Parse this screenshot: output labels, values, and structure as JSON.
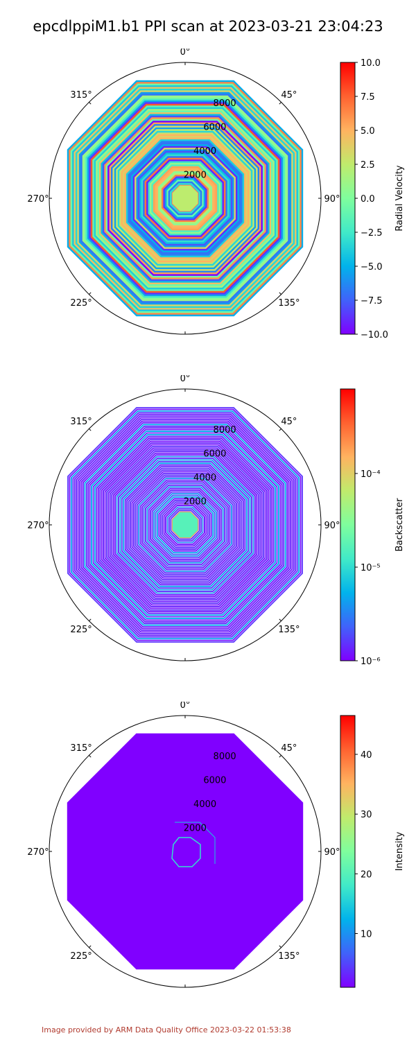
{
  "title": "epcdlppiM1.b1 PPI scan at 2023-03-21 23:04:23",
  "footer": "Image provided by ARM Data Quality Office 2023-03-22 01:53:38",
  "colors": {
    "title": "#000000",
    "footer": "#b03a2e",
    "colormap": [
      "#8000ff",
      "#4062fa",
      "#01b3eb",
      "#41eac8",
      "#7ffe9d",
      "#c0eb6c",
      "#ffb360",
      "#ff6230",
      "#ff0000"
    ]
  },
  "chart_data": [
    {
      "type": "heatmap",
      "projection": "polar",
      "field": "Radial Velocity",
      "angular_ticks": [
        "0°",
        "45°",
        "90°",
        "135°",
        "180°",
        "225°",
        "270°",
        "315°"
      ],
      "radial_ticks": [
        "2000",
        "4000",
        "6000",
        "8000"
      ],
      "rlim": [
        0,
        10500
      ],
      "colorbar": {
        "label": "Radial Velocity",
        "scale": "linear",
        "range": [
          -10.0,
          10.0
        ],
        "ticks": [
          "10.0",
          "7.5",
          "5.0",
          "2.5",
          "0.0",
          "−2.5",
          "−5.0",
          "−7.5",
          "−10.0"
        ]
      }
    },
    {
      "type": "heatmap",
      "projection": "polar",
      "field": "Backscatter",
      "angular_ticks": [
        "0°",
        "45°",
        "90°",
        "135°",
        "180°",
        "225°",
        "270°",
        "315°"
      ],
      "radial_ticks": [
        "2000",
        "4000",
        "6000",
        "8000"
      ],
      "rlim": [
        0,
        10500
      ],
      "colorbar": {
        "label": "Backscatter",
        "scale": "log",
        "range": [
          1e-06,
          0.0008
        ],
        "ticks": [
          "10⁻⁴",
          "10⁻⁵",
          "10⁻⁶"
        ]
      }
    },
    {
      "type": "heatmap",
      "projection": "polar",
      "field": "Intensity",
      "angular_ticks": [
        "0°",
        "45°",
        "90°",
        "135°",
        "180°",
        "225°",
        "270°",
        "315°"
      ],
      "radial_ticks": [
        "2000",
        "4000",
        "6000",
        "8000"
      ],
      "rlim": [
        0,
        10500
      ],
      "colorbar": {
        "label": "Intensity",
        "scale": "linear",
        "range": [
          1.0,
          46.5
        ],
        "ticks": [
          "40",
          "30",
          "20",
          "10"
        ]
      }
    }
  ]
}
